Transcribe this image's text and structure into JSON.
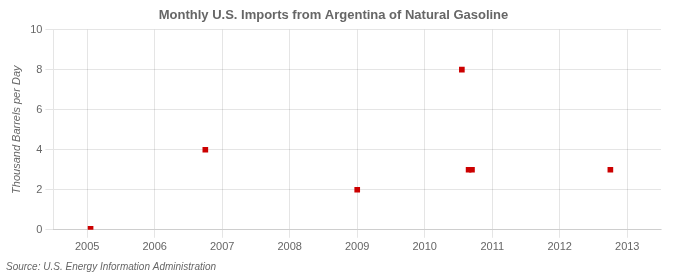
{
  "chart_data": {
    "type": "scatter",
    "title": "Monthly U.S. Imports from Argentina of Natural Gasoline",
    "y_label": "Thousand Barrels per Day",
    "source": "Source: U.S. Energy Information Administration",
    "x": [
      2005.05,
      2006.75,
      2009.0,
      2010.55,
      2010.65,
      2010.7,
      2012.75
    ],
    "values": [
      0.05,
      4.0,
      2.0,
      8.0,
      3.0,
      3.0,
      3.0
    ],
    "color": "#cc0000",
    "marker": "square",
    "xlim": [
      2004.5,
      2013.5
    ],
    "xticks": [
      2005,
      2006,
      2007,
      2008,
      2009,
      2010,
      2011,
      2012,
      2013
    ],
    "ylim": [
      0,
      10
    ],
    "yticks": [
      0,
      2,
      4,
      6,
      8,
      10
    ],
    "grid": true
  }
}
